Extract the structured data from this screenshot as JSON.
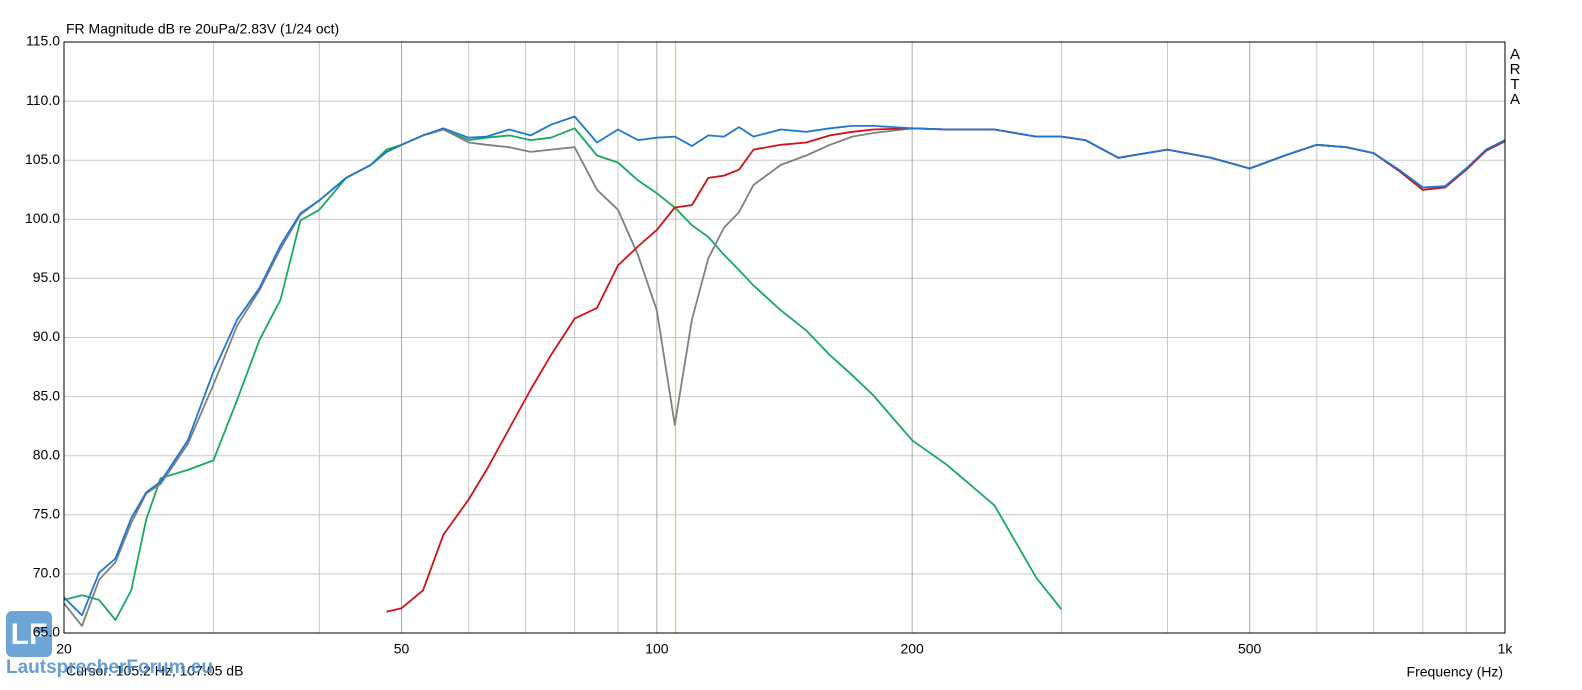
{
  "chart_data": {
    "type": "line",
    "title": "FR Magnitude dB re 20uPa/2.83V (1/24 oct)",
    "x_label": "Frequency (Hz)",
    "brand": "ARTA",
    "cursor_text": "Cursor: 105.2 Hz, 107.05 dB",
    "cursor_x": 105.2,
    "cursor_color": "#e8d020",
    "watermark": "LautsprecherForum.eu",
    "logo": "LF",
    "xscale": "log",
    "grid": true,
    "xlim": [
      20,
      1000
    ],
    "ylim": [
      65,
      115
    ],
    "xticks": [
      20,
      50,
      100,
      200,
      500,
      {
        "value": 1000,
        "label": "1k"
      }
    ],
    "xminorticks": [
      30,
      40,
      60,
      70,
      80,
      90,
      300,
      400,
      600,
      700,
      800,
      900
    ],
    "yticks": [
      {
        "value": 65,
        "label": "65.0"
      },
      {
        "value": 70,
        "label": "70.0"
      },
      {
        "value": 75,
        "label": "75.0"
      },
      {
        "value": 80,
        "label": "80.0"
      },
      {
        "value": 85,
        "label": "85.0"
      },
      {
        "value": 90,
        "label": "90.0"
      },
      {
        "value": 95,
        "label": "95.0"
      },
      {
        "value": 100,
        "label": "100.0"
      },
      {
        "value": 105,
        "label": "105.0"
      },
      {
        "value": 110,
        "label": "110.0"
      },
      {
        "value": 115,
        "label": "115.0"
      }
    ],
    "x": [
      20,
      21,
      22,
      23,
      24,
      25,
      26,
      28,
      30,
      32,
      34,
      36,
      38,
      40,
      43,
      46,
      48,
      50,
      53,
      56,
      60,
      63,
      67,
      71,
      75,
      80,
      85,
      90,
      95,
      100,
      105,
      110,
      115,
      120,
      125,
      130,
      140,
      150,
      160,
      170,
      180,
      200,
      220,
      250,
      280,
      300,
      320,
      350,
      400,
      450,
      500,
      550,
      600,
      650,
      700,
      750,
      800,
      850,
      900,
      950,
      1000
    ],
    "series": [
      {
        "color": "#18a860",
        "values": [
          67.8,
          68.2,
          67.8,
          66.1,
          68.6,
          74.6,
          78.1,
          78.8,
          79.6,
          84.7,
          89.8,
          93.2,
          99.9,
          100.8,
          103.5,
          104.6,
          105.9,
          106.3,
          107.1,
          107.6,
          106.7,
          106.9,
          107.1,
          106.7,
          106.9,
          107.7,
          105.4,
          104.8,
          103.3,
          102.2,
          101.0,
          99.5,
          98.5,
          97.0,
          95.7,
          94.4,
          92.3,
          90.6,
          88.5,
          86.8,
          85.1,
          81.3,
          79.2,
          75.8,
          69.7,
          67.0,
          null,
          null,
          null,
          null,
          null,
          null,
          null,
          null,
          null,
          null,
          null,
          null,
          null,
          null,
          null
        ]
      },
      {
        "color": "#808080",
        "values": [
          67.5,
          65.6,
          69.5,
          71.0,
          74.3,
          76.8,
          77.6,
          81.0,
          86.0,
          91.0,
          94.0,
          97.5,
          100.4,
          101.6,
          103.5,
          104.6,
          105.7,
          106.3,
          107.1,
          107.6,
          106.5,
          106.3,
          106.1,
          105.7,
          105.9,
          106.1,
          102.5,
          100.8,
          97.0,
          92.3,
          82.6,
          91.5,
          96.7,
          99.3,
          100.6,
          102.9,
          104.6,
          105.4,
          106.3,
          107.0,
          107.3,
          107.7,
          107.6,
          107.6,
          107.0,
          107.0,
          106.7,
          105.2,
          105.9,
          105.2,
          104.3,
          105.4,
          106.3,
          106.1,
          105.6,
          104.1,
          102.5,
          102.7,
          104.2,
          105.8,
          106.6
        ]
      },
      {
        "color": "#d0101a",
        "values": [
          null,
          null,
          null,
          null,
          null,
          null,
          null,
          null,
          null,
          null,
          null,
          null,
          null,
          null,
          null,
          null,
          66.8,
          67.1,
          68.6,
          73.3,
          76.3,
          78.8,
          82.3,
          85.6,
          88.5,
          91.6,
          92.5,
          96.1,
          97.7,
          99.1,
          101.0,
          101.2,
          103.5,
          103.7,
          104.2,
          105.9,
          106.3,
          106.5,
          107.1,
          107.4,
          107.6,
          107.7,
          107.6,
          107.6,
          107.0,
          107.0,
          106.7,
          105.2,
          105.9,
          105.2,
          104.3,
          105.4,
          106.3,
          106.1,
          105.6,
          104.1,
          102.5,
          102.7,
          104.2,
          105.8,
          106.6
        ]
      },
      {
        "color": "#1e78d2",
        "values": [
          68.0,
          66.5,
          70.1,
          71.3,
          74.7,
          76.9,
          77.8,
          81.3,
          87.1,
          91.5,
          94.2,
          97.8,
          100.5,
          101.6,
          103.5,
          104.6,
          105.7,
          106.3,
          107.1,
          107.7,
          106.9,
          107.0,
          107.6,
          107.1,
          108.0,
          108.7,
          106.5,
          107.6,
          106.7,
          106.9,
          107.0,
          106.2,
          107.1,
          107.0,
          107.8,
          107.0,
          107.6,
          107.4,
          107.7,
          107.9,
          107.9,
          107.7,
          107.6,
          107.6,
          107.0,
          107.0,
          106.7,
          105.2,
          105.9,
          105.2,
          104.3,
          105.4,
          106.3,
          106.1,
          105.6,
          104.2,
          102.7,
          102.8,
          104.3,
          105.9,
          106.7
        ]
      }
    ]
  }
}
